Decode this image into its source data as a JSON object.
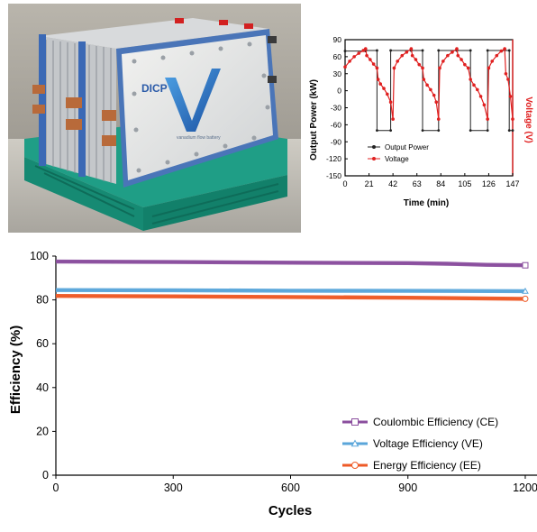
{
  "photo": {
    "brand": "DICP",
    "product": "vanadium flow battery"
  },
  "chart_data": [
    {
      "type": "line",
      "panel": "inset",
      "xlabel": "Time (min)",
      "ylabel_left": "Output Power (kW)",
      "ylabel_right": "Voltage (V)",
      "xlim": [
        0,
        147
      ],
      "ylim": [
        -150,
        90
      ],
      "xticks": [
        "0",
        "21",
        "42",
        "63",
        "84",
        "105",
        "126",
        "147"
      ],
      "yticks": [
        "90",
        "60",
        "30",
        "0",
        "-30",
        "-60",
        "-90",
        "-120",
        "-150"
      ],
      "legend_position": "lower-right",
      "series": [
        {
          "name": "Output Power",
          "color": "#222222",
          "marker": "square",
          "points": [
            [
              0,
              70
            ],
            [
              18,
              70
            ],
            [
              18,
              71
            ],
            [
              28,
              71
            ],
            [
              28,
              -70
            ],
            [
              40,
              -70
            ],
            [
              40,
              71
            ],
            [
              58,
              71
            ],
            [
              58,
              71
            ],
            [
              68,
              71
            ],
            [
              68,
              -70
            ],
            [
              82,
              -70
            ],
            [
              82,
              71
            ],
            [
              98,
              71
            ],
            [
              98,
              71
            ],
            [
              110,
              71
            ],
            [
              110,
              -70
            ],
            [
              125,
              -70
            ],
            [
              125,
              71
            ],
            [
              144,
              71
            ],
            [
              144,
              -70
            ],
            [
              147,
              -70
            ]
          ]
        },
        {
          "name": "Voltage",
          "color": "#e02020",
          "marker": "circle",
          "points": [
            [
              0,
              42
            ],
            [
              4,
              52
            ],
            [
              8,
              60
            ],
            [
              12,
              66
            ],
            [
              16,
              71
            ],
            [
              18,
              74
            ],
            [
              19,
              62
            ],
            [
              22,
              55
            ],
            [
              25,
              47
            ],
            [
              28,
              40
            ],
            [
              29,
              20
            ],
            [
              31,
              12
            ],
            [
              34,
              4
            ],
            [
              37,
              -6
            ],
            [
              40,
              -20
            ],
            [
              42,
              -50
            ],
            [
              43,
              40
            ],
            [
              46,
              52
            ],
            [
              50,
              62
            ],
            [
              54,
              68
            ],
            [
              58,
              74
            ],
            [
              59,
              62
            ],
            [
              62,
              55
            ],
            [
              65,
              46
            ],
            [
              68,
              40
            ],
            [
              69,
              20
            ],
            [
              72,
              10
            ],
            [
              75,
              2
            ],
            [
              78,
              -8
            ],
            [
              80,
              -20
            ],
            [
              82,
              -50
            ],
            [
              83,
              40
            ],
            [
              86,
              52
            ],
            [
              90,
              62
            ],
            [
              94,
              68
            ],
            [
              98,
              74
            ],
            [
              99,
              62
            ],
            [
              102,
              55
            ],
            [
              105,
              46
            ],
            [
              108,
              40
            ],
            [
              110,
              20
            ],
            [
              113,
              10
            ],
            [
              116,
              2
            ],
            [
              119,
              -10
            ],
            [
              122,
              -25
            ],
            [
              125,
              -50
            ],
            [
              126,
              40
            ],
            [
              129,
              52
            ],
            [
              133,
              62
            ],
            [
              137,
              70
            ],
            [
              140,
              74
            ],
            [
              141,
              30
            ],
            [
              143,
              20
            ],
            [
              145,
              -10
            ],
            [
              147,
              -50
            ]
          ]
        }
      ]
    },
    {
      "type": "line",
      "panel": "main",
      "xlabel": "Cycles",
      "ylabel": "Efficiency (%)",
      "xlim": [
        0,
        1230
      ],
      "ylim": [
        0,
        100
      ],
      "xticks": [
        0,
        300,
        600,
        900,
        1200
      ],
      "yticks": [
        0,
        20,
        40,
        60,
        80,
        100
      ],
      "legend_position": "lower-right",
      "series": [
        {
          "name": "Coulombic Efficiency (CE)",
          "color": "#8a4e9e",
          "marker": "square",
          "x": [
            0,
            300,
            600,
            900,
            1000,
            1100,
            1200
          ],
          "values": [
            97.5,
            97.3,
            97.0,
            96.8,
            96.5,
            96.0,
            95.8
          ]
        },
        {
          "name": "Voltage Efficiency (VE)",
          "color": "#5aa6da",
          "marker": "triangle",
          "x": [
            0,
            300,
            600,
            900,
            1200
          ],
          "values": [
            84.5,
            84.4,
            84.2,
            84.1,
            84.0
          ]
        },
        {
          "name": "Energy Efficiency (EE)",
          "color": "#ee5a26",
          "marker": "circle",
          "x": [
            0,
            300,
            600,
            900,
            1200
          ],
          "values": [
            81.8,
            81.6,
            81.3,
            81.0,
            80.5
          ]
        }
      ]
    }
  ]
}
